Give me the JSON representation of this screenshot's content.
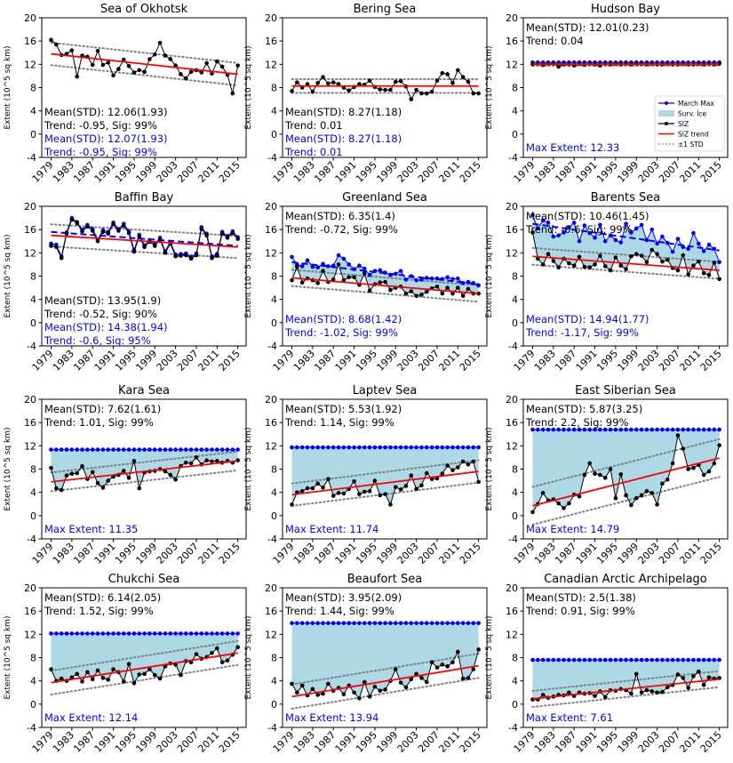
{
  "chart_data": {
    "type": "line",
    "x_years": [
      1979,
      1980,
      1981,
      1982,
      1983,
      1984,
      1985,
      1986,
      1987,
      1988,
      1989,
      1990,
      1991,
      1992,
      1993,
      1994,
      1995,
      1996,
      1997,
      1998,
      1999,
      2000,
      2001,
      2002,
      2003,
      2004,
      2005,
      2006,
      2007,
      2008,
      2009,
      2010,
      2011,
      2012,
      2013,
      2014,
      2015
    ],
    "x_tick_labels": [
      "1979",
      "1983",
      "1987",
      "1991",
      "1995",
      "1999",
      "2003",
      "2007",
      "2011",
      "2015"
    ],
    "y_ticks": [
      -4,
      0,
      4,
      8,
      12,
      16,
      20
    ],
    "ylim": [
      -4,
      20
    ],
    "ylabel": "Extent (10^5 sq km)",
    "legend": {
      "placement": "right",
      "panel": 2,
      "entries": [
        "March Max",
        "Surv. Ice",
        "SIZ",
        "SIZ trend",
        "±1 STD"
      ]
    },
    "colors": {
      "march_max": "#0000ff",
      "surv_ice": "#add8e6",
      "siz": "#000000",
      "trend": "#ff0000",
      "std": "#808080",
      "blue_text": "#0000ff"
    },
    "panels": [
      {
        "title": "Sea of Okhotsk",
        "stats": [
          {
            "text": "Mean(STD): 12.06(1.93)",
            "color": "black"
          },
          {
            "text": "Trend: -0.95, Sig: 99%",
            "color": "black"
          },
          {
            "text": "Mean(STD): 12.07(1.93)",
            "color": "blue"
          },
          {
            "text": "Trend: -0.95, Sig: 99%",
            "color": "blue"
          }
        ],
        "max_extent": "",
        "max_mode": "none",
        "siz": [
          16.2,
          15.4,
          13.6,
          13.8,
          14.4,
          9.9,
          13.5,
          13.3,
          11.9,
          14.3,
          11.9,
          12.3,
          10.1,
          11.2,
          12.8,
          11.7,
          10.6,
          11.0,
          10.7,
          12.9,
          13.7,
          15.7,
          13.5,
          12.9,
          11.8,
          10.3,
          9.6,
          10.7,
          11.0,
          10.6,
          12.2,
          10.4,
          12.5,
          11.6,
          10.2,
          7.0,
          11.8
        ],
        "max_series": null,
        "trend": [
          13.8,
          10.3
        ],
        "std": 1.93
      },
      {
        "title": "Bering Sea",
        "stats": [
          {
            "text": "Mean(STD): 8.27(1.18)",
            "color": "black"
          },
          {
            "text": "Trend: 0.01",
            "color": "black"
          },
          {
            "text": "Mean(STD): 8.27(1.18)",
            "color": "blue"
          },
          {
            "text": "Trend: 0.01",
            "color": "blue"
          }
        ],
        "max_extent": "",
        "max_mode": "none",
        "siz": [
          7.4,
          8.9,
          8.0,
          8.6,
          7.3,
          8.8,
          9.8,
          8.7,
          8.9,
          8.6,
          8.0,
          7.5,
          8.1,
          8.6,
          8.5,
          9.2,
          8.1,
          7.7,
          7.6,
          7.6,
          9.0,
          9.1,
          8.2,
          6.0,
          7.6,
          7.0,
          7.0,
          7.3,
          9.2,
          10.5,
          10.3,
          8.8,
          11.0,
          9.8,
          9.0,
          7.0,
          7.0
        ],
        "max_series": null,
        "trend": [
          8.27,
          8.27
        ],
        "std": 1.18
      },
      {
        "title": "Hudson Bay",
        "stats": [
          {
            "text": "Mean(STD): 12.01(0.23)",
            "color": "black"
          },
          {
            "text": "Trend: 0.04",
            "color": "black"
          }
        ],
        "max_extent": "Max Extent: 12.33",
        "max_mode": "flat",
        "siz": [
          12.0,
          12.1,
          11.9,
          12.1,
          12.1,
          11.6,
          12.0,
          12.0,
          11.8,
          12.1,
          11.9,
          12.1,
          12.0,
          11.8,
          12.1,
          12.0,
          12.1,
          12.0,
          12.1,
          12.0,
          12.1,
          12.1,
          12.0,
          12.1,
          12.0,
          12.0,
          12.1,
          12.0,
          12.0,
          12.1,
          12.0,
          12.0,
          12.1,
          12.0,
          12.1,
          12.0,
          12.1
        ],
        "max_series": 12.33,
        "trend": [
          12.0,
          12.0
        ],
        "std": 0.23
      },
      {
        "title": "Baffin Bay",
        "stats": [
          {
            "text": "Mean(STD): 13.95(1.9)",
            "color": "black"
          },
          {
            "text": "Trend: -0.52, Sig: 90%",
            "color": "black"
          },
          {
            "text": "Mean(STD): 14.38(1.94)",
            "color": "blue"
          },
          {
            "text": "Trend: -0.6, Sig: 95%",
            "color": "blue"
          }
        ],
        "max_extent": "",
        "max_mode": "series",
        "siz": [
          13.2,
          13.0,
          11.1,
          15.3,
          17.7,
          17.1,
          15.7,
          16.5,
          15.8,
          14.0,
          15.6,
          15.3,
          16.9,
          15.8,
          16.7,
          15.4,
          12.2,
          14.8,
          13.0,
          13.9,
          13.2,
          14.3,
          12.0,
          13.6,
          11.4,
          11.5,
          11.6,
          11.0,
          11.6,
          16.1,
          15.0,
          11.1,
          11.5,
          15.3,
          14.6,
          15.4,
          14.4
        ],
        "max_series": [
          13.6,
          13.4,
          11.4,
          15.5,
          18.0,
          17.3,
          16.0,
          16.8,
          16.1,
          14.3,
          15.9,
          15.6,
          17.2,
          16.1,
          17.0,
          15.7,
          12.5,
          15.1,
          13.3,
          14.2,
          13.5,
          14.6,
          12.3,
          13.9,
          11.7,
          11.8,
          11.9,
          11.3,
          11.9,
          16.4,
          15.3,
          11.4,
          11.8,
          15.6,
          14.9,
          15.7,
          14.7
        ],
        "trend": [
          15.0,
          13.0
        ],
        "max_trend": [
          15.6,
          13.2
        ],
        "std": 1.9
      },
      {
        "title": "Greenland Sea",
        "stats": [
          {
            "text": "Mean(STD): 6.35(1.4)",
            "color": "black"
          },
          {
            "text": "Trend: -0.72, Sig: 99%",
            "color": "black"
          },
          {
            "text": "Mean(STD): 8.68(1.42)",
            "color": "blue"
          },
          {
            "text": "Trend: -1.02, Sig: 99%",
            "color": "blue"
          }
        ],
        "max_extent": "",
        "max_mode": "series",
        "siz": [
          7.3,
          9.6,
          6.9,
          7.6,
          7.3,
          6.8,
          8.9,
          7.0,
          7.4,
          10.0,
          7.3,
          7.8,
          7.8,
          6.5,
          8.5,
          5.5,
          6.6,
          6.9,
          7.0,
          5.6,
          6.0,
          6.2,
          5.0,
          5.4,
          4.6,
          4.8,
          5.3,
          5.9,
          6.2,
          5.0,
          6.0,
          5.0,
          6.0,
          4.6,
          5.8,
          5.0,
          5.0
        ],
        "max_series": [
          11.3,
          10.0,
          9.7,
          10.7,
          9.6,
          9.5,
          10.1,
          9.7,
          9.8,
          11.6,
          11.0,
          10.0,
          9.2,
          9.8,
          9.3,
          8.2,
          8.9,
          9.0,
          8.6,
          8.2,
          8.4,
          8.9,
          7.4,
          8.0,
          7.3,
          7.4,
          7.7,
          7.6,
          7.6,
          7.5,
          7.8,
          7.5,
          7.6,
          6.8,
          7.0,
          6.8,
          6.4
        ],
        "trend": [
          7.7,
          5.0
        ],
        "max_trend": [
          10.4,
          6.6
        ],
        "std": 1.4
      },
      {
        "title": "Barents Sea",
        "stats": [
          {
            "text": "Mean(STD): 10.46(1.45)",
            "color": "black"
          },
          {
            "text": "Trend: -0.6, Sig: 99%",
            "color": "black"
          },
          {
            "text": "Mean(STD): 14.94(1.77)",
            "color": "blue"
          },
          {
            "text": "Trend: -1.17, Sig: 99%",
            "color": "blue"
          }
        ],
        "max_extent": "",
        "max_mode": "series",
        "siz": [
          15.5,
          11.0,
          10.0,
          11.8,
          10.6,
          9.5,
          11.0,
          10.2,
          9.8,
          11.3,
          9.6,
          9.5,
          10.0,
          11.5,
          9.7,
          9.0,
          11.2,
          9.8,
          9.2,
          11.4,
          11.8,
          11.5,
          10.4,
          12.5,
          11.8,
          10.5,
          10.8,
          9.4,
          9.0,
          11.6,
          8.3,
          9.8,
          10.5,
          8.5,
          8.2,
          10.3,
          7.5
        ],
        "max_series": [
          18.5,
          16.2,
          17.6,
          17.2,
          14.8,
          15.0,
          15.5,
          16.4,
          17.2,
          14.0,
          16.7,
          15.4,
          14.6,
          16.8,
          14.0,
          15.0,
          14.2,
          13.8,
          17.0,
          15.5,
          16.2,
          16.8,
          14.2,
          16.0,
          13.6,
          14.8,
          13.7,
          12.2,
          14.4,
          13.0,
          12.7,
          15.4,
          13.6,
          12.3,
          13.4,
          12.7,
          10.4
        ],
        "trend": [
          11.4,
          9.0
        ],
        "max_trend": [
          17.0,
          12.4
        ],
        "std": 1.45
      },
      {
        "title": "Kara Sea",
        "stats": [
          {
            "text": "Mean(STD): 7.62(1.61)",
            "color": "black"
          },
          {
            "text": "Trend: 1.01, Sig: 99%",
            "color": "black"
          }
        ],
        "max_extent": "Max Extent: 11.35",
        "max_mode": "flat",
        "siz": [
          8.2,
          4.7,
          4.4,
          6.9,
          7.2,
          7.3,
          8.5,
          6.3,
          7.5,
          5.6,
          4.8,
          6.0,
          6.7,
          7.0,
          7.7,
          6.5,
          9.4,
          4.7,
          7.4,
          7.6,
          7.7,
          8.0,
          7.6,
          7.0,
          6.2,
          8.5,
          9.1,
          9.0,
          10.0,
          8.8,
          9.5,
          9.3,
          9.4,
          9.1,
          9.4,
          9.1,
          9.5
        ],
        "max_series": 11.35,
        "trend": [
          5.8,
          9.4
        ],
        "std": 1.61
      },
      {
        "title": "Laptev Sea",
        "stats": [
          {
            "text": "Mean(STD): 5.53(1.92)",
            "color": "black"
          },
          {
            "text": "Trend: 1.14, Sig: 99%",
            "color": "black"
          }
        ],
        "max_extent": "Max Extent: 11.74",
        "max_mode": "flat",
        "siz": [
          1.9,
          4.0,
          4.2,
          4.7,
          4.7,
          5.5,
          4.8,
          6.3,
          3.4,
          3.9,
          3.8,
          4.6,
          5.9,
          3.7,
          4.1,
          4.2,
          6.0,
          3.5,
          3.7,
          1.9,
          4.9,
          4.5,
          5.1,
          6.9,
          4.6,
          5.2,
          7.3,
          6.3,
          6.4,
          7.2,
          8.6,
          7.8,
          8.3,
          9.3,
          8.8,
          9.3,
          5.8
        ],
        "max_series": 11.74,
        "trend": [
          3.6,
          7.6
        ],
        "std": 1.92
      },
      {
        "title": "East Siberian Sea",
        "stats": [
          {
            "text": "Mean(STD): 5.87(3.25)",
            "color": "black"
          },
          {
            "text": "Trend: 2.2, Sig: 99%",
            "color": "black"
          }
        ],
        "max_extent": "Max Extent: 14.79",
        "max_mode": "flat",
        "siz": [
          0.6,
          2.0,
          3.9,
          2.6,
          2.8,
          2.1,
          1.3,
          2.1,
          3.6,
          3.3,
          7.0,
          9.0,
          7.2,
          7.0,
          6.5,
          8.0,
          3.0,
          7.1,
          3.5,
          1.8,
          3.0,
          3.5,
          4.2,
          3.9,
          1.9,
          5.5,
          6.2,
          9.0,
          13.8,
          11.5,
          8.0,
          8.2,
          8.7,
          7.0,
          7.6,
          9.0,
          12.1
        ],
        "max_series": 14.79,
        "trend": [
          1.7,
          9.9
        ],
        "std": 3.25
      },
      {
        "title": "Chukchi Sea",
        "stats": [
          {
            "text": "Mean(STD): 6.14(2.05)",
            "color": "black"
          },
          {
            "text": "Trend: 1.52, Sig: 99%",
            "color": "black"
          }
        ],
        "max_extent": "Max Extent: 12.14",
        "max_mode": "flat",
        "siz": [
          6.0,
          4.0,
          4.4,
          4.0,
          4.6,
          5.2,
          3.9,
          5.5,
          4.3,
          5.8,
          4.5,
          4.2,
          6.0,
          5.5,
          3.9,
          6.9,
          3.6,
          5.1,
          5.2,
          6.0,
          5.0,
          4.4,
          6.5,
          7.0,
          6.8,
          5.0,
          7.4,
          7.2,
          8.6,
          7.8,
          8.1,
          8.8,
          9.6,
          7.2,
          7.5,
          8.5,
          9.8
        ],
        "max_series": 12.14,
        "trend": [
          3.7,
          8.8
        ],
        "std": 2.05
      },
      {
        "title": "Beaufort Sea",
        "stats": [
          {
            "text": "Mean(STD): 3.95(2.09)",
            "color": "black"
          },
          {
            "text": "Trend: 1.44, Sig: 99%",
            "color": "black"
          }
        ],
        "max_extent": "Max Extent: 13.94",
        "max_mode": "flat",
        "siz": [
          3.5,
          2.0,
          3.2,
          1.5,
          2.6,
          1.6,
          1.8,
          3.5,
          2.3,
          2.8,
          1.7,
          3.2,
          2.0,
          1.0,
          3.8,
          1.3,
          3.0,
          2.3,
          2.5,
          4.0,
          6.0,
          3.7,
          2.9,
          4.3,
          5.2,
          4.5,
          3.8,
          7.2,
          6.3,
          6.8,
          6.5,
          7.2,
          9.0,
          4.4,
          4.5,
          6.0,
          9.4
        ],
        "max_series": 13.94,
        "trend": [
          1.3,
          6.6
        ],
        "std": 2.09
      },
      {
        "title": "Canadian Arctic Archipelago",
        "stats": [
          {
            "text": "Mean(STD): 2.5(1.38)",
            "color": "black"
          },
          {
            "text": "Trend: 0.91, Sig: 99%",
            "color": "black"
          }
        ],
        "max_extent": "Max Extent: 7.61",
        "max_mode": "flat",
        "siz": [
          0.8,
          0.8,
          1.6,
          1.1,
          1.3,
          1.6,
          1.5,
          2.0,
          1.4,
          2.0,
          1.8,
          1.9,
          1.4,
          2.2,
          1.2,
          2.4,
          2.3,
          2.6,
          2.4,
          1.8,
          5.2,
          2.0,
          2.4,
          2.2,
          2.0,
          2.1,
          2.9,
          3.3,
          5.1,
          4.5,
          2.8,
          4.8,
          5.6,
          3.3,
          4.6,
          4.4,
          4.5
        ],
        "max_series": 7.61,
        "trend": [
          0.9,
          4.3
        ],
        "std": 1.38
      }
    ]
  }
}
